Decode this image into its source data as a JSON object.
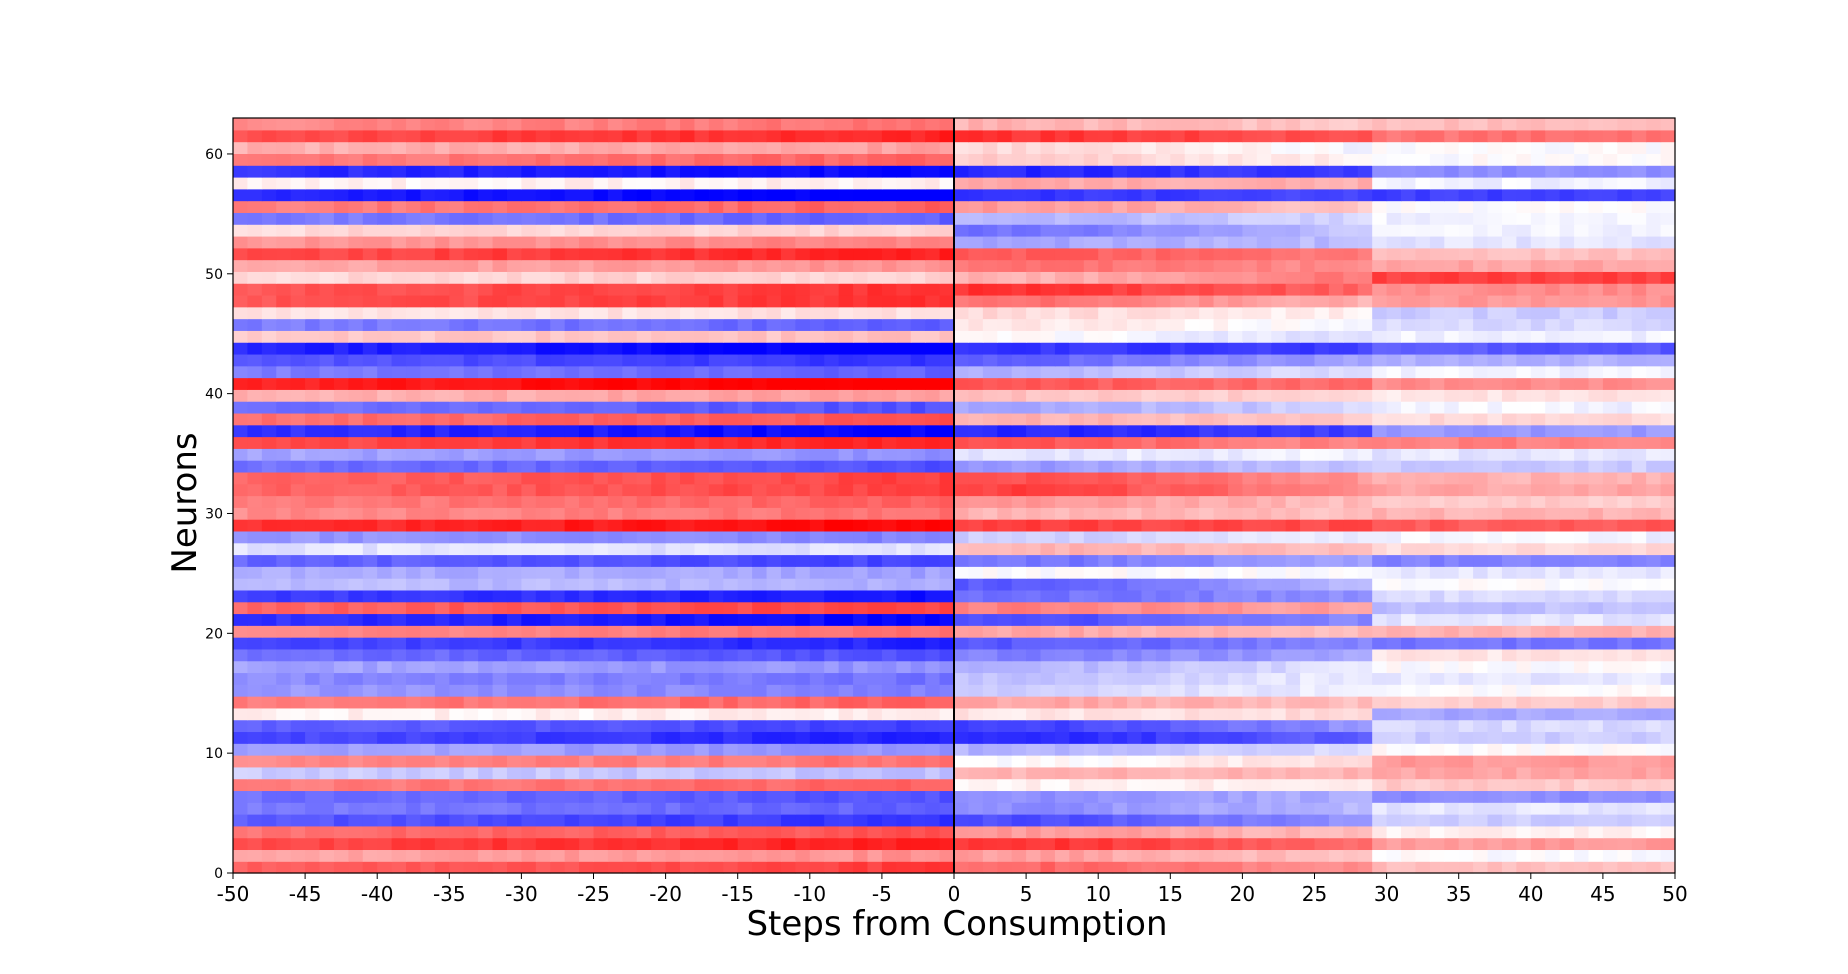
{
  "chart_data": {
    "type": "heatmap",
    "title": "",
    "xlabel": "Steps from Consumption",
    "ylabel": "Neurons",
    "xlim": [
      -50,
      50
    ],
    "ylim": [
      0,
      63
    ],
    "x_ticks": [
      "-50",
      "-45",
      "-40",
      "-35",
      "-30",
      "-25",
      "-20",
      "-15",
      "-10",
      "-5",
      "0",
      "5",
      "10",
      "15",
      "20",
      "25",
      "30",
      "35",
      "40",
      "45",
      "50"
    ],
    "y_ticks": [
      "0",
      "10",
      "20",
      "30",
      "40",
      "50",
      "60"
    ],
    "event_line_x": 0,
    "colormap": "bwr",
    "colors": {
      "low": "#0000ff",
      "mid": "#ffffff",
      "high": "#ff0000",
      "frame": "#000000"
    },
    "value_range": [
      -1,
      1
    ],
    "neurons_bottom_to_top": [
      {
        "pre": 0.62,
        "early": 0.6,
        "mid": 0.42,
        "late": 0.25
      },
      {
        "pre": 0.35,
        "early": 0.38,
        "mid": 0.22,
        "late": 0.0
      },
      {
        "pre": 0.72,
        "early": 0.8,
        "mid": 0.55,
        "late": 0.4
      },
      {
        "pre": 0.55,
        "early": 0.4,
        "mid": 0.25,
        "late": 0.05
      },
      {
        "pre": -0.65,
        "early": -0.7,
        "mid": -0.4,
        "late": -0.2
      },
      {
        "pre": -0.5,
        "early": -0.45,
        "mid": -0.25,
        "late": -0.1
      },
      {
        "pre": -0.55,
        "early": -0.45,
        "mid": -0.3,
        "late": -0.45
      },
      {
        "pre": 0.5,
        "early": 0.05,
        "mid": 0.1,
        "late": 0.2
      },
      {
        "pre": -0.2,
        "early": 0.3,
        "mid": 0.3,
        "late": 0.35
      },
      {
        "pre": 0.45,
        "early": 0.0,
        "mid": 0.15,
        "late": 0.4
      },
      {
        "pre": -0.35,
        "early": -0.3,
        "mid": -0.1,
        "late": 0.0
      },
      {
        "pre": -0.7,
        "early": -0.85,
        "mid": -0.6,
        "late": -0.2
      },
      {
        "pre": -0.6,
        "early": -0.75,
        "mid": -0.4,
        "late": -0.15
      },
      {
        "pre": 0.05,
        "early": 0.1,
        "mid": 0.15,
        "late": -0.35
      },
      {
        "pre": 0.5,
        "early": 0.35,
        "mid": 0.25,
        "late": 0.2
      },
      {
        "pre": -0.4,
        "early": -0.2,
        "mid": -0.05,
        "late": 0.0
      },
      {
        "pre": -0.45,
        "early": -0.25,
        "mid": -0.05,
        "late": -0.1
      },
      {
        "pre": -0.35,
        "early": -0.3,
        "mid": -0.1,
        "late": 0.0
      },
      {
        "pre": -0.55,
        "early": -0.5,
        "mid": -0.35,
        "late": 0.1
      },
      {
        "pre": -0.7,
        "early": -0.65,
        "mid": -0.45,
        "late": -0.55
      },
      {
        "pre": 0.45,
        "early": 0.35,
        "mid": 0.25,
        "late": 0.3
      },
      {
        "pre": -0.8,
        "early": -0.7,
        "mid": -0.45,
        "late": -0.1
      },
      {
        "pre": 0.6,
        "early": 0.5,
        "mid": 0.35,
        "late": -0.25
      },
      {
        "pre": -0.75,
        "early": -0.55,
        "mid": -0.45,
        "late": -0.15
      },
      {
        "pre": -0.25,
        "early": -0.65,
        "mid": -0.25,
        "late": 0.0
      },
      {
        "pre": -0.3,
        "early": 0.0,
        "mid": 0.0,
        "late": -0.1
      },
      {
        "pre": -0.6,
        "early": -0.55,
        "mid": -0.35,
        "late": -0.5
      },
      {
        "pre": -0.1,
        "early": 0.3,
        "mid": 0.25,
        "late": 0.15
      },
      {
        "pre": -0.4,
        "early": -0.2,
        "mid": -0.05,
        "late": -0.05
      },
      {
        "pre": 0.8,
        "early": 0.75,
        "mid": 0.7,
        "late": 0.65
      },
      {
        "pre": 0.45,
        "early": 0.3,
        "mid": 0.25,
        "late": 0.3
      },
      {
        "pre": 0.5,
        "early": 0.4,
        "mid": 0.25,
        "late": 0.2
      },
      {
        "pre": 0.6,
        "early": 0.75,
        "mid": 0.45,
        "late": 0.35
      },
      {
        "pre": 0.6,
        "early": 0.7,
        "mid": 0.4,
        "late": 0.3
      },
      {
        "pre": -0.55,
        "early": -0.4,
        "mid": -0.2,
        "late": -0.2
      },
      {
        "pre": -0.35,
        "early": -0.1,
        "mid": -0.05,
        "late": -0.1
      },
      {
        "pre": 0.7,
        "early": 0.65,
        "mid": 0.45,
        "late": 0.5
      },
      {
        "pre": -0.8,
        "early": -0.85,
        "mid": -0.75,
        "late": -0.4
      },
      {
        "pre": 0.55,
        "early": 0.3,
        "mid": 0.2,
        "late": 0.15
      },
      {
        "pre": -0.55,
        "early": -0.35,
        "mid": -0.15,
        "late": -0.05
      },
      {
        "pre": 0.3,
        "early": 0.25,
        "mid": 0.15,
        "late": 0.1
      },
      {
        "pre": 0.85,
        "early": 0.65,
        "mid": 0.55,
        "late": 0.45
      },
      {
        "pre": -0.5,
        "early": -0.3,
        "mid": -0.1,
        "late": -0.05
      },
      {
        "pre": -0.65,
        "early": -0.6,
        "mid": -0.35,
        "late": -0.3
      },
      {
        "pre": -0.85,
        "early": -0.8,
        "mid": -0.75,
        "late": -0.65
      },
      {
        "pre": 0.2,
        "early": 0.0,
        "mid": -0.15,
        "late": -0.05
      },
      {
        "pre": -0.5,
        "early": 0.1,
        "mid": -0.05,
        "late": -0.15
      },
      {
        "pre": 0.1,
        "early": 0.15,
        "mid": 0.05,
        "late": -0.2
      },
      {
        "pre": 0.65,
        "early": 0.55,
        "mid": 0.3,
        "late": 0.4
      },
      {
        "pre": 0.65,
        "early": 0.8,
        "mid": 0.6,
        "late": 0.45
      },
      {
        "pre": 0.15,
        "early": 0.3,
        "mid": 0.55,
        "late": 0.75
      },
      {
        "pre": 0.35,
        "early": 0.55,
        "mid": 0.45,
        "late": 0.35
      },
      {
        "pre": 0.7,
        "early": 0.65,
        "mid": 0.5,
        "late": 0.25
      },
      {
        "pre": 0.4,
        "early": -0.35,
        "mid": -0.25,
        "late": -0.1
      },
      {
        "pre": 0.15,
        "early": -0.55,
        "mid": -0.2,
        "late": -0.05
      },
      {
        "pre": -0.5,
        "early": -0.3,
        "mid": -0.15,
        "late": -0.05
      },
      {
        "pre": 0.5,
        "early": 0.4,
        "mid": 0.2,
        "late": 0.0
      },
      {
        "pre": -0.85,
        "early": -0.8,
        "mid": -0.7,
        "late": -0.75
      },
      {
        "pre": 0.05,
        "early": 0.35,
        "mid": 0.3,
        "late": -0.05
      },
      {
        "pre": -0.8,
        "early": -0.85,
        "mid": -0.75,
        "late": -0.45
      },
      {
        "pre": 0.5,
        "early": 0.2,
        "mid": 0.05,
        "late": 0.0
      },
      {
        "pre": 0.3,
        "early": 0.15,
        "mid": -0.05,
        "late": 0.0
      },
      {
        "pre": 0.7,
        "early": 0.8,
        "mid": 0.65,
        "late": 0.55
      },
      {
        "pre": 0.45,
        "early": 0.3,
        "mid": 0.2,
        "late": 0.25
      }
    ]
  }
}
